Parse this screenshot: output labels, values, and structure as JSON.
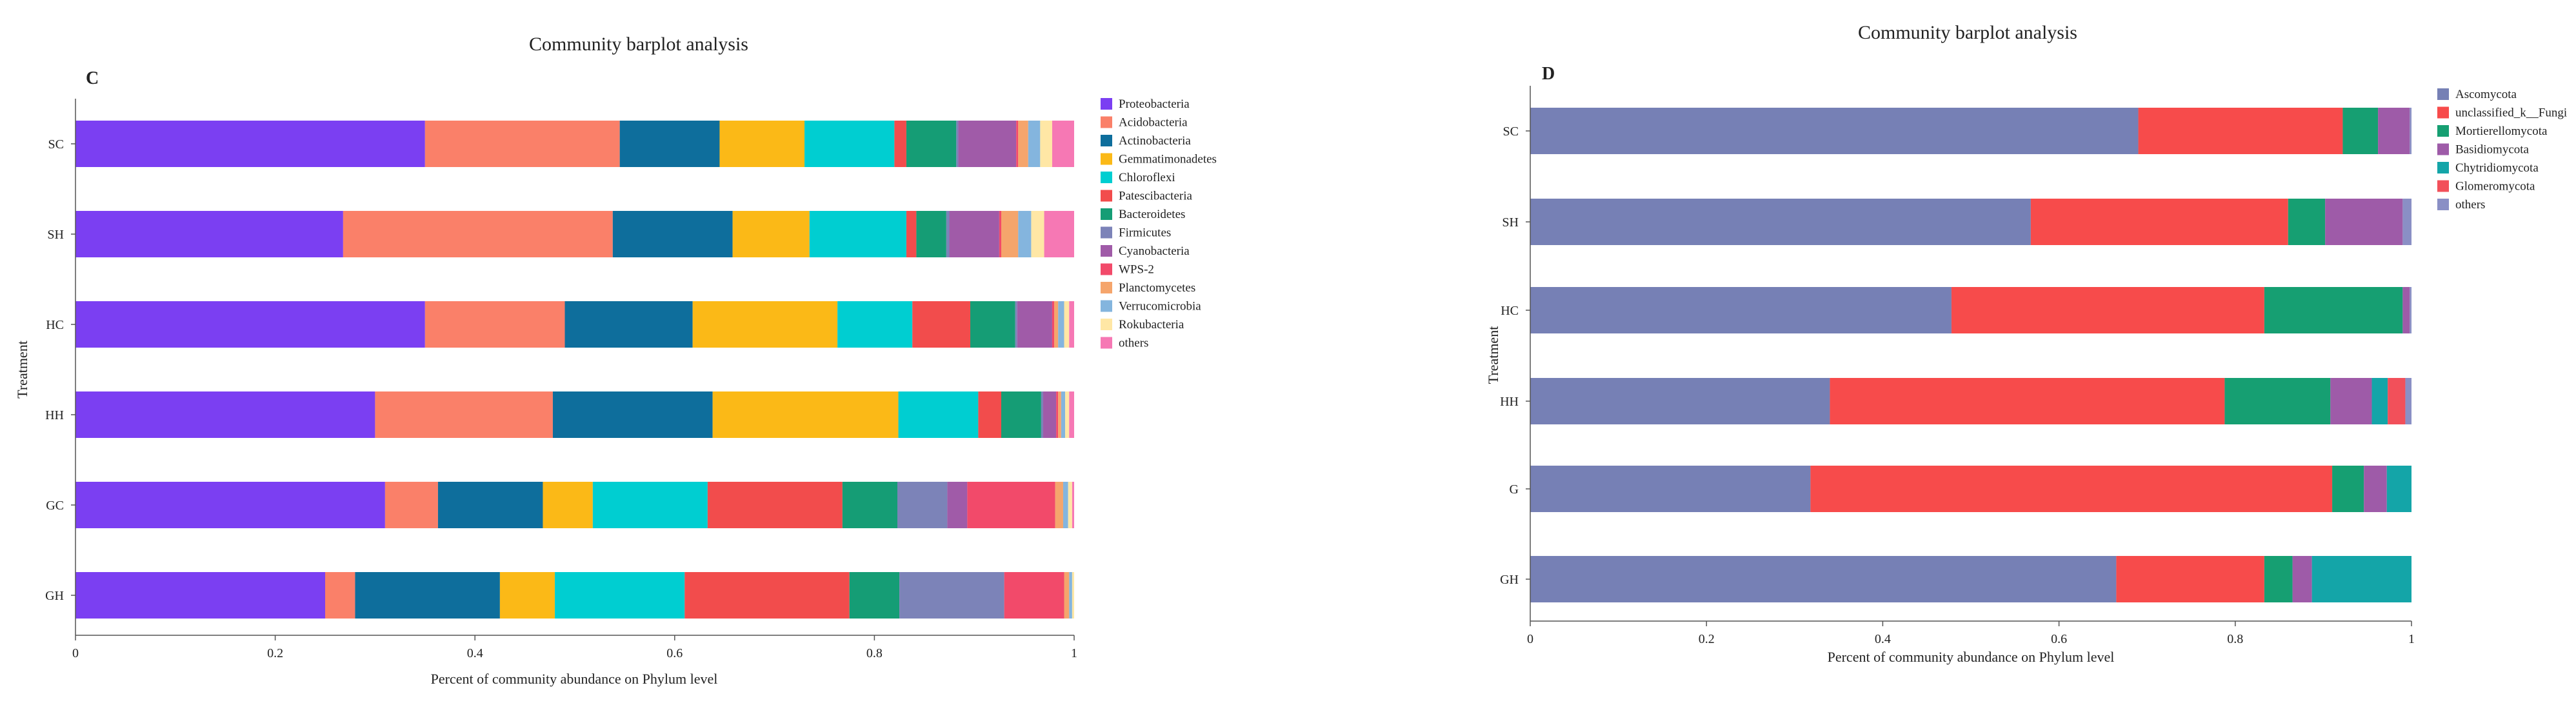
{
  "chart_data": [
    {
      "type": "bar",
      "orientation": "horizontal",
      "stacked": true,
      "panel_label": "C",
      "title": "Community barplot analysis",
      "xlabel": "Percent of community abundance on Phylum level",
      "ylabel": "Treatment",
      "xlim": [
        0,
        1
      ],
      "xticks": [
        "0",
        "0.2",
        "0.4",
        "0.6",
        "0.8",
        "1"
      ],
      "grid": false,
      "legend_position": "right",
      "categories": [
        "SC",
        "SH",
        "HC",
        "HH",
        "GC",
        "GH"
      ],
      "series": [
        {
          "name": "Proteobacteria",
          "color": "#7B3FF2",
          "values": [
            0.35,
            0.268,
            0.35,
            0.3,
            0.31,
            0.25
          ]
        },
        {
          "name": "Acidobacteria",
          "color": "#FA8069",
          "values": [
            0.195,
            0.27,
            0.14,
            0.178,
            0.053,
            0.03
          ]
        },
        {
          "name": "Actinobacteria",
          "color": "#0E6E9C",
          "values": [
            0.1,
            0.12,
            0.128,
            0.16,
            0.105,
            0.145
          ]
        },
        {
          "name": "Gemmatimonadetes",
          "color": "#FBB917",
          "values": [
            0.085,
            0.077,
            0.145,
            0.186,
            0.05,
            0.055
          ]
        },
        {
          "name": "Chloroflexi",
          "color": "#00CED1",
          "values": [
            0.09,
            0.097,
            0.075,
            0.08,
            0.115,
            0.13
          ]
        },
        {
          "name": "Patescibacteria",
          "color": "#F24C4C",
          "values": [
            0.012,
            0.01,
            0.058,
            0.023,
            0.135,
            0.165
          ]
        },
        {
          "name": "Bacteroidetes",
          "color": "#159D75",
          "values": [
            0.05,
            0.03,
            0.045,
            0.04,
            0.055,
            0.05
          ]
        },
        {
          "name": "Firmicutes",
          "color": "#7C83B8",
          "values": [
            0.002,
            0.003,
            0.002,
            0.002,
            0.05,
            0.105
          ]
        },
        {
          "name": "Cyanobacteria",
          "color": "#A05BA8",
          "values": [
            0.058,
            0.05,
            0.035,
            0.013,
            0.02,
            0.0
          ]
        },
        {
          "name": "WPS-2",
          "color": "#F24A6A",
          "values": [
            0.002,
            0.002,
            0.002,
            0.002,
            0.088,
            0.06
          ]
        },
        {
          "name": "Planctomycetes",
          "color": "#F5A56C",
          "values": [
            0.01,
            0.017,
            0.004,
            0.003,
            0.008,
            0.005
          ]
        },
        {
          "name": "Verrucomicrobia",
          "color": "#84B5DE",
          "values": [
            0.012,
            0.013,
            0.006,
            0.004,
            0.005,
            0.003
          ]
        },
        {
          "name": "Rokubacteria",
          "color": "#FFE7A5",
          "values": [
            0.012,
            0.013,
            0.005,
            0.004,
            0.004,
            0.002
          ]
        },
        {
          "name": "others",
          "color": "#F678B4",
          "values": [
            0.022,
            0.03,
            0.005,
            0.005,
            0.002,
            0.0
          ]
        }
      ]
    },
    {
      "type": "bar",
      "orientation": "horizontal",
      "stacked": true,
      "panel_label": "D",
      "title": "Community barplot analysis",
      "xlabel": "Percent of community abundance on Phylum level",
      "ylabel": "Treatment",
      "xlim": [
        0,
        1
      ],
      "xticks": [
        "0",
        "0.2",
        "0.4",
        "0.6",
        "0.8",
        "1"
      ],
      "grid": false,
      "legend_position": "right",
      "categories": [
        "SC",
        "SH",
        "HC",
        "HH",
        "G",
        "GH"
      ],
      "series": [
        {
          "name": "Ascomycota",
          "color": "#7680B5",
          "values": [
            0.69,
            0.568,
            0.478,
            0.34,
            0.318,
            0.665
          ]
        },
        {
          "name": "unclassified_k__Fungi",
          "color": "#F74B4B",
          "values": [
            0.232,
            0.292,
            0.355,
            0.448,
            0.592,
            0.168
          ]
        },
        {
          "name": "Mortierellomycota",
          "color": "#169F72",
          "values": [
            0.04,
            0.042,
            0.157,
            0.12,
            0.036,
            0.032
          ]
        },
        {
          "name": "Basidiomycota",
          "color": "#9E5BA8",
          "values": [
            0.036,
            0.088,
            0.008,
            0.047,
            0.026,
            0.022
          ]
        },
        {
          "name": "Chytridiomycota",
          "color": "#14A5A8",
          "values": [
            0.0,
            0.0,
            0.0,
            0.018,
            0.028,
            0.113
          ]
        },
        {
          "name": "Glomeromycota",
          "color": "#F2505A",
          "values": [
            0.0,
            0.0,
            0.0,
            0.02,
            0.0,
            0.0
          ]
        },
        {
          "name": "others",
          "color": "#8A8FC5",
          "values": [
            0.002,
            0.01,
            0.002,
            0.007,
            0.0,
            0.0
          ]
        }
      ]
    }
  ]
}
